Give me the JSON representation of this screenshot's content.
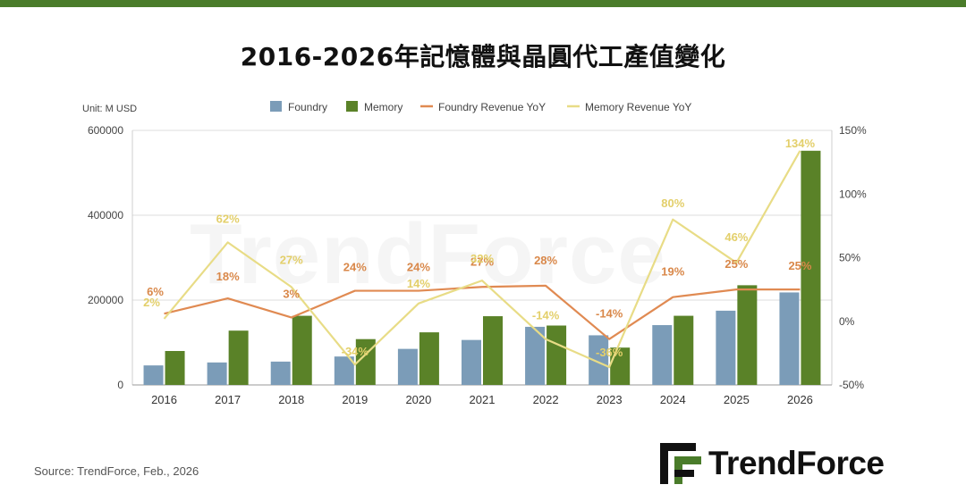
{
  "page": {
    "title": "2016-2026年記憶體與晶圓代工產值變化",
    "source": "Source: TrendForce, Feb., 2026",
    "logo_text": "TrendForce",
    "watermark_text": "TrendForce"
  },
  "colors": {
    "top_bar": "#4a7c2a",
    "foundry": "#7b9cb8",
    "memory": "#5a8228",
    "foundry_yoy": "#e08a52",
    "memory_yoy": "#e8dc86",
    "foundry_label": "#d9884a",
    "memory_label": "#e3cf6a"
  },
  "chart_data": {
    "type": "bar",
    "unit_label": "Unit: M USD",
    "categories": [
      "2016",
      "2017",
      "2018",
      "2019",
      "2020",
      "2021",
      "2022",
      "2023",
      "2024",
      "2025",
      "2026"
    ],
    "series": [
      {
        "name": "Foundry",
        "type": "bar",
        "axis": "left",
        "values": [
          46000,
          53000,
          55000,
          67000,
          85000,
          106000,
          137000,
          117000,
          141000,
          175000,
          218000
        ]
      },
      {
        "name": "Memory",
        "type": "bar",
        "axis": "left",
        "values": [
          80000,
          128000,
          163000,
          108000,
          124000,
          162000,
          140000,
          88000,
          163000,
          235000,
          552000
        ]
      },
      {
        "name": "Foundry Revenue YoY",
        "type": "line",
        "axis": "right",
        "values": [
          6,
          18,
          3,
          24,
          24,
          27,
          28,
          -14,
          19,
          25,
          25
        ],
        "labels": [
          "6%",
          "18%",
          "3%",
          "24%",
          "24%",
          "27%",
          "28%",
          "-14%",
          "19%",
          "25%",
          "25%"
        ]
      },
      {
        "name": "Memory Revenue YoY",
        "type": "line",
        "axis": "right",
        "values": [
          2,
          62,
          27,
          -34,
          14,
          32,
          -14,
          -36,
          80,
          46,
          134
        ],
        "labels": [
          "2%",
          "62%",
          "27%",
          "-34%",
          "14%",
          "32%",
          "-14%",
          "-36%",
          "80%",
          "46%",
          "134%"
        ]
      }
    ],
    "y_left": {
      "min": 0,
      "max": 600000,
      "ticks": [
        "0",
        "200000",
        "400000",
        "600000"
      ]
    },
    "y_right": {
      "min": -50,
      "max": 150,
      "ticks": [
        "-50%",
        "0%",
        "50%",
        "100%",
        "150%"
      ]
    },
    "grid": true,
    "legend_position": "top"
  }
}
